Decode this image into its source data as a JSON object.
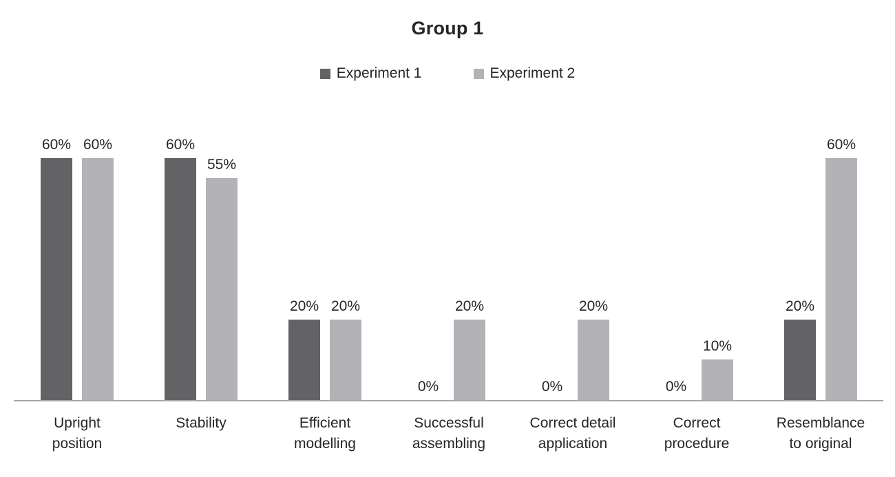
{
  "title": "Group 1",
  "legend": {
    "items": [
      {
        "label": "Experiment 1",
        "color": "#636366"
      },
      {
        "label": "Experiment 2",
        "color": "#b3b3b7"
      }
    ]
  },
  "colors": {
    "axis_line": "#a6a6a6",
    "text": "#262626",
    "background": "#ffffff"
  },
  "chart_data": {
    "type": "bar",
    "title": "Group 1",
    "categories": [
      "Upright\nposition",
      "Stability",
      "Efficient\nmodelling",
      "Successful\nassembling",
      "Correct detail\napplication",
      "Correct\nprocedure",
      "Resemblance\nto original"
    ],
    "series": [
      {
        "name": "Experiment 1",
        "color": "#636366",
        "values": [
          60,
          60,
          20,
          0,
          0,
          0,
          20
        ]
      },
      {
        "name": "Experiment 2",
        "color": "#b3b3b7",
        "values": [
          60,
          55,
          20,
          20,
          20,
          10,
          60
        ]
      }
    ],
    "value_labels": true,
    "value_suffix": "%",
    "ylim": [
      0,
      70
    ],
    "xlabel": "",
    "ylabel": "",
    "grid": false,
    "legend_position": "top",
    "y_axis_visible": false
  }
}
